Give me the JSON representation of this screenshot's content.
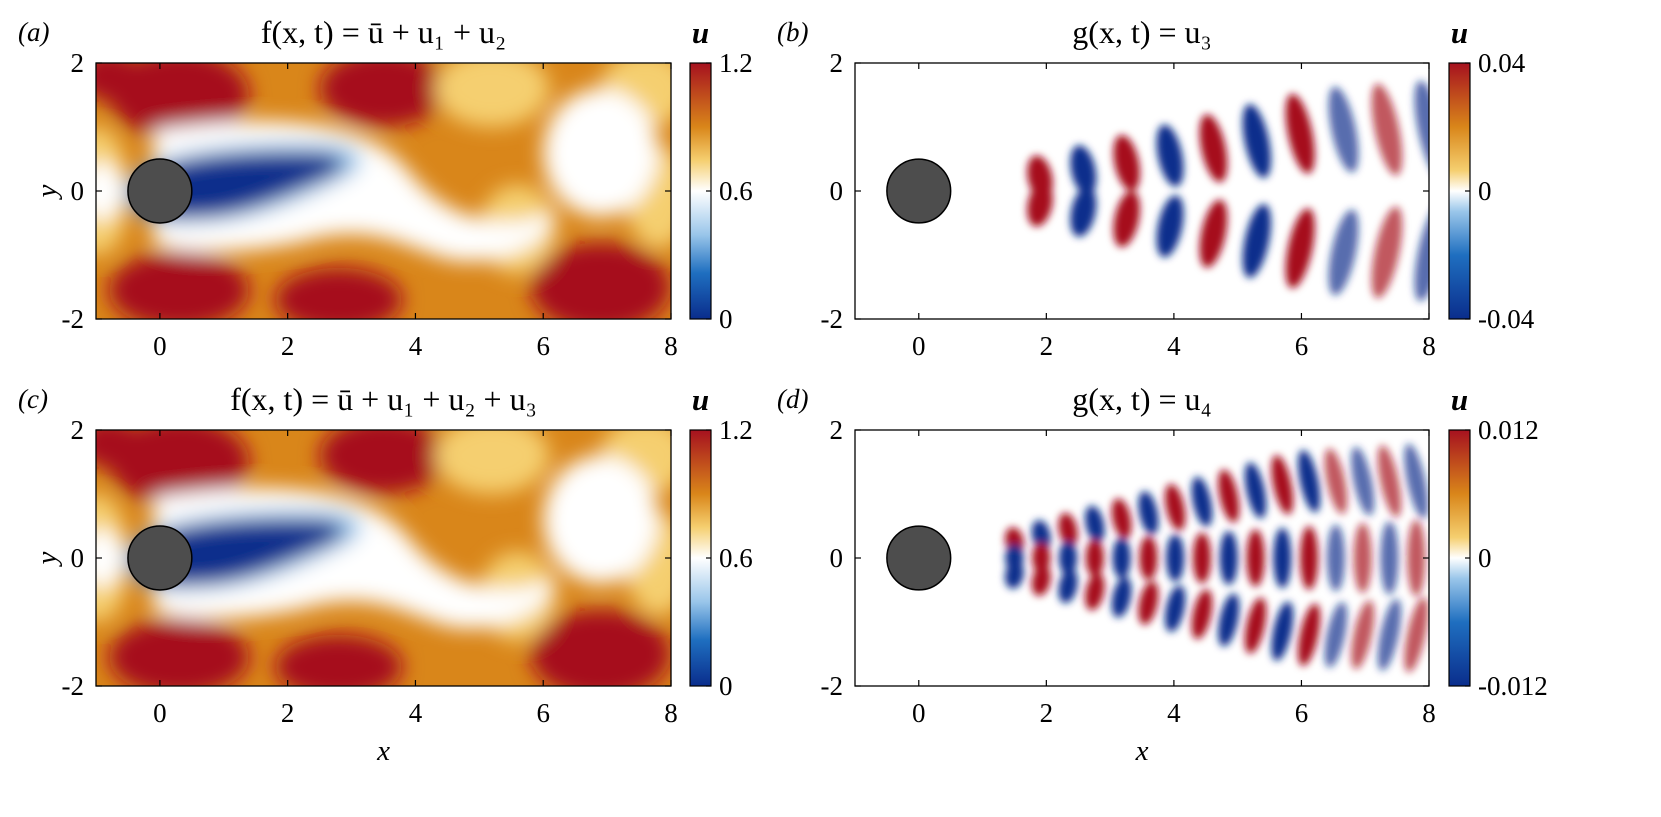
{
  "figure": {
    "colors": {
      "red": "#a6111f",
      "orange": "#d9861a",
      "yellow": "#f5cf70",
      "white": "#ffffff",
      "light_blue": "#9ac6ea",
      "blue": "#1f6fc0",
      "dark_blue": "#0a2d8c",
      "cylinder": "#4d4d4d"
    }
  },
  "chart_data": [
    {
      "panel": "a",
      "panel_label": "(a)",
      "type": "heatmap",
      "title": "f(x, t) = ū + u₁ + u₂",
      "xlabel": "",
      "ylabel": "y",
      "xlim": [
        -1,
        8
      ],
      "ylim": [
        -2,
        2
      ],
      "x_ticks": [
        "0",
        "2",
        "4",
        "6",
        "8"
      ],
      "y_ticks": [
        "2",
        "0",
        "-2"
      ],
      "colorbar": {
        "label": "u",
        "range": [
          0,
          1.2
        ],
        "ticks": [
          "1.2",
          "0.6",
          "0"
        ],
        "diverging": false
      },
      "obstacle": {
        "shape": "circle",
        "center": [
          0,
          0
        ],
        "radius": 0.5
      }
    },
    {
      "panel": "b",
      "panel_label": "(b)",
      "type": "heatmap",
      "title": "g(x, t) = u₃",
      "xlabel": "",
      "ylabel": "",
      "xlim": [
        -1,
        8
      ],
      "ylim": [
        -2,
        2
      ],
      "x_ticks": [
        "0",
        "2",
        "4",
        "6",
        "8"
      ],
      "y_ticks": [
        "2",
        "0",
        "-2"
      ],
      "colorbar": {
        "label": "u",
        "range": [
          -0.04,
          0.04
        ],
        "ticks": [
          "0.04",
          "0",
          "-0.04"
        ],
        "diverging": true
      },
      "obstacle": {
        "shape": "circle",
        "center": [
          0,
          0
        ],
        "radius": 0.5
      }
    },
    {
      "panel": "c",
      "panel_label": "(c)",
      "type": "heatmap",
      "title": "f(x, t) = ū + u₁ + u₂ + u₃",
      "xlabel": "x",
      "ylabel": "y",
      "xlim": [
        -1,
        8
      ],
      "ylim": [
        -2,
        2
      ],
      "x_ticks": [
        "0",
        "2",
        "4",
        "6",
        "8"
      ],
      "y_ticks": [
        "2",
        "0",
        "-2"
      ],
      "colorbar": {
        "label": "u",
        "range": [
          0,
          1.2
        ],
        "ticks": [
          "1.2",
          "0.6",
          "0"
        ],
        "diverging": false
      },
      "obstacle": {
        "shape": "circle",
        "center": [
          0,
          0
        ],
        "radius": 0.5
      }
    },
    {
      "panel": "d",
      "panel_label": "(d)",
      "type": "heatmap",
      "title": "g(x, t) = u₄",
      "xlabel": "x",
      "ylabel": "",
      "xlim": [
        -1,
        8
      ],
      "ylim": [
        -2,
        2
      ],
      "x_ticks": [
        "0",
        "2",
        "4",
        "6",
        "8"
      ],
      "y_ticks": [
        "2",
        "0",
        "-2"
      ],
      "colorbar": {
        "label": "u",
        "range": [
          -0.012,
          0.012
        ],
        "ticks": [
          "0.012",
          "0",
          "-0.012"
        ],
        "diverging": true
      },
      "obstacle": {
        "shape": "circle",
        "center": [
          0,
          0
        ],
        "radius": 0.5
      }
    }
  ]
}
